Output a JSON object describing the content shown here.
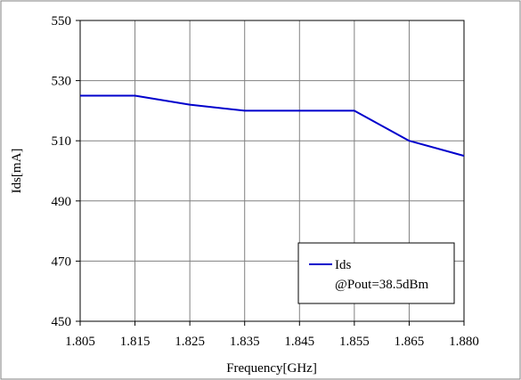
{
  "chart_data": {
    "type": "line",
    "x": [
      "1.805",
      "1.815",
      "1.825",
      "1.835",
      "1.845",
      "1.855",
      "1.865",
      "1.880"
    ],
    "series": [
      {
        "name": "Ids",
        "values": [
          525,
          525,
          522,
          520,
          520,
          520,
          510,
          505
        ],
        "color": "#0000cc"
      }
    ],
    "title": "",
    "xlabel": "Frequency[GHz]",
    "ylabel": "Ids[mA]",
    "ylim": [
      450,
      550
    ],
    "yticks": [
      "450",
      "470",
      "490",
      "510",
      "530",
      "550"
    ],
    "grid": true,
    "legend": {
      "placement": "bottom-right",
      "entries": [
        "Ids"
      ],
      "note": "@Pout=38.5dBm"
    }
  }
}
